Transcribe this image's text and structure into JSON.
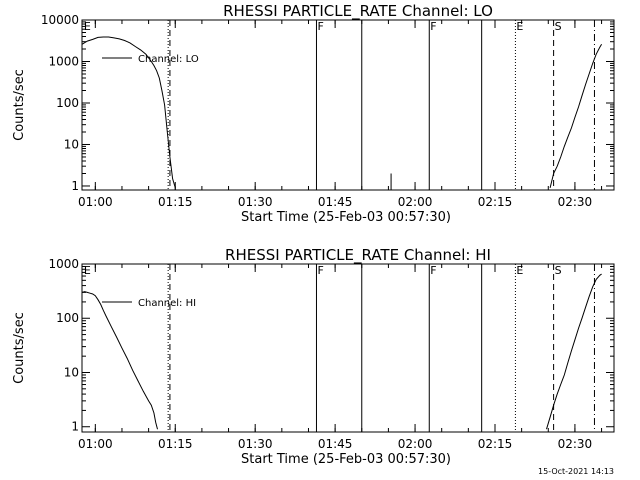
{
  "footer": {
    "date": "15-Oct-2021 14:13"
  },
  "chart_data": [
    {
      "type": "line",
      "title": "RHESSI PARTICLE_RATE Channel: LO",
      "xlabel": "Start Time (25-Feb-03 00:57:30)",
      "ylabel": "Counts/sec",
      "yscale": "log",
      "xlim": [
        "00:57:30",
        "02:37:20"
      ],
      "ylim": [
        0.8,
        10000
      ],
      "x_ticks": [
        "01:00",
        "01:15",
        "01:30",
        "01:45",
        "02:00",
        "02:15",
        "02:30"
      ],
      "y_ticks": [
        {
          "value": 10000,
          "label": "10000"
        },
        {
          "value": 1000,
          "label": "1000"
        },
        {
          "value": 100,
          "label": "100"
        },
        {
          "value": 10,
          "label": "10"
        },
        {
          "value": 1,
          "label": "1"
        }
      ],
      "legend": {
        "label": "Channel: LO",
        "placement": "top-left"
      },
      "series": [
        {
          "name": "Channel: LO",
          "x": [
            "00:57:30",
            "00:58:30",
            "00:59:30",
            "01:00:30",
            "01:01:30",
            "01:02:30",
            "01:03:30",
            "01:04:30",
            "01:05:30",
            "01:06:30",
            "01:07:30",
            "01:08:30",
            "01:09:30",
            "01:10:30",
            "01:11:00",
            "01:11:30",
            "01:12:00",
            "01:12:30",
            "01:13:00",
            "01:13:30",
            "01:14:00",
            "01:14:30",
            "01:15:00"
          ],
          "y": [
            2600,
            3100,
            3400,
            3800,
            3900,
            3900,
            3700,
            3500,
            3200,
            2800,
            2300,
            1900,
            1500,
            1000,
            800,
            600,
            400,
            200,
            90,
            20,
            5,
            1.5,
            0.9
          ]
        },
        {
          "name": "Channel: LO",
          "x": [
            "02:25:20",
            "02:26:00",
            "02:26:40",
            "02:27:20",
            "02:28:00",
            "02:28:40",
            "02:29:20",
            "02:30:00",
            "02:30:40",
            "02:31:20",
            "02:32:00",
            "02:32:40",
            "02:33:20",
            "02:34:00",
            "02:34:40",
            "02:35:00"
          ],
          "y": [
            0.9,
            2,
            3,
            5,
            9,
            15,
            25,
            45,
            80,
            150,
            280,
            500,
            900,
            1500,
            2200,
            2600
          ]
        }
      ],
      "spikes": [
        {
          "x": "01:55:30",
          "y": 2
        }
      ],
      "markers": [
        {
          "label": "E",
          "time": "00:57:40",
          "style": "none"
        },
        {
          "label": "",
          "time": "01:13:40",
          "style": "dotted"
        },
        {
          "label": "",
          "time": "01:14:00",
          "style": "dashed"
        },
        {
          "label": "F",
          "time": "01:41:30",
          "style": "solid"
        },
        {
          "label": "",
          "time": "01:50:00",
          "style": "solid"
        },
        {
          "label": "F",
          "time": "02:02:40",
          "style": "solid"
        },
        {
          "label": "",
          "time": "02:12:30",
          "style": "solid"
        },
        {
          "label": "E",
          "time": "02:18:50",
          "style": "dotted"
        },
        {
          "label": "S",
          "time": "02:26:00",
          "style": "dashed"
        },
        {
          "label": "",
          "time": "02:33:40",
          "style": "dashdot"
        }
      ],
      "grid": false
    },
    {
      "type": "line",
      "title": "RHESSI PARTICLE_RATE Channel: HI",
      "xlabel": "Start Time (25-Feb-03 00:57:30)",
      "ylabel": "Counts/sec",
      "yscale": "log",
      "xlim": [
        "00:57:30",
        "02:37:20"
      ],
      "ylim": [
        0.8,
        1000
      ],
      "x_ticks": [
        "01:00",
        "01:15",
        "01:30",
        "01:45",
        "02:00",
        "02:15",
        "02:30"
      ],
      "y_ticks": [
        {
          "value": 1000,
          "label": "1000"
        },
        {
          "value": 100,
          "label": "100"
        },
        {
          "value": 10,
          "label": "10"
        },
        {
          "value": 1,
          "label": "1"
        }
      ],
      "legend": {
        "label": "Channel: HI",
        "placement": "top-left"
      },
      "series": [
        {
          "name": "Channel: HI",
          "x": [
            "00:57:30",
            "00:58:00",
            "00:58:30",
            "00:59:00",
            "00:59:30",
            "01:00:00",
            "01:00:30",
            "01:01:00",
            "01:01:30",
            "01:02:00",
            "01:03:00",
            "01:04:00",
            "01:05:00",
            "01:06:00",
            "01:07:00",
            "01:08:00",
            "01:09:00",
            "01:10:00",
            "01:10:30",
            "01:11:00",
            "01:11:20",
            "01:11:40"
          ],
          "y": [
            300,
            310,
            300,
            290,
            280,
            260,
            220,
            180,
            140,
            110,
            70,
            45,
            28,
            18,
            11,
            7,
            4.5,
            3,
            2.5,
            1.8,
            1.2,
            0.9
          ]
        },
        {
          "name": "Channel: HI",
          "x": [
            "02:24:40",
            "02:25:20",
            "02:26:00",
            "02:26:40",
            "02:27:20",
            "02:28:00",
            "02:28:40",
            "02:29:20",
            "02:30:00",
            "02:30:40",
            "02:31:20",
            "02:32:00",
            "02:32:40",
            "02:33:20",
            "02:34:00",
            "02:34:40",
            "02:35:00"
          ],
          "y": [
            0.9,
            1.5,
            2.5,
            4,
            6,
            9,
            15,
            25,
            40,
            65,
            100,
            160,
            250,
            380,
            520,
            620,
            650
          ]
        }
      ],
      "spikes": [],
      "markers": [
        {
          "label": "E",
          "time": "00:57:40",
          "style": "none"
        },
        {
          "label": "",
          "time": "01:13:40",
          "style": "dotted"
        },
        {
          "label": "",
          "time": "01:14:00",
          "style": "dashed"
        },
        {
          "label": "F",
          "time": "01:41:30",
          "style": "solid"
        },
        {
          "label": "",
          "time": "01:50:00",
          "style": "solid"
        },
        {
          "label": "F",
          "time": "02:02:40",
          "style": "solid"
        },
        {
          "label": "",
          "time": "02:12:30",
          "style": "solid"
        },
        {
          "label": "E",
          "time": "02:18:50",
          "style": "dotted"
        },
        {
          "label": "S",
          "time": "02:26:00",
          "style": "dashed"
        },
        {
          "label": "",
          "time": "02:33:40",
          "style": "dashdot"
        }
      ],
      "grid": false
    }
  ]
}
